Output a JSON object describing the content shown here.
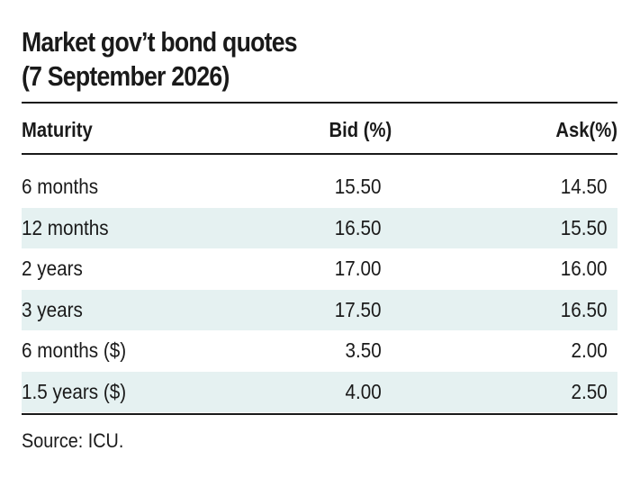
{
  "title": {
    "line1": "Market gov’t bond quotes",
    "line2": "(7 September 2026)"
  },
  "table": {
    "columns": {
      "maturity": "Maturity",
      "bid": "Bid (%)",
      "ask": "Ask(%)"
    },
    "rows": [
      {
        "maturity": "6 months",
        "bid": "15.50",
        "ask": "14.50"
      },
      {
        "maturity": "12 months",
        "bid": "16.50",
        "ask": "15.50"
      },
      {
        "maturity": "2 years",
        "bid": "17.00",
        "ask": "16.00"
      },
      {
        "maturity": "3 years",
        "bid": "17.50",
        "ask": "16.50"
      },
      {
        "maturity": "6 months ($)",
        "bid": "3.50",
        "ask": "2.00"
      },
      {
        "maturity": "1.5 years ($)",
        "bid": "4.00",
        "ask": "2.50"
      }
    ]
  },
  "source": "Source: ICU.",
  "colors": {
    "shaded_row": "#e5f1f1",
    "text": "#1a1a1a",
    "rule": "#1a1a1a"
  }
}
